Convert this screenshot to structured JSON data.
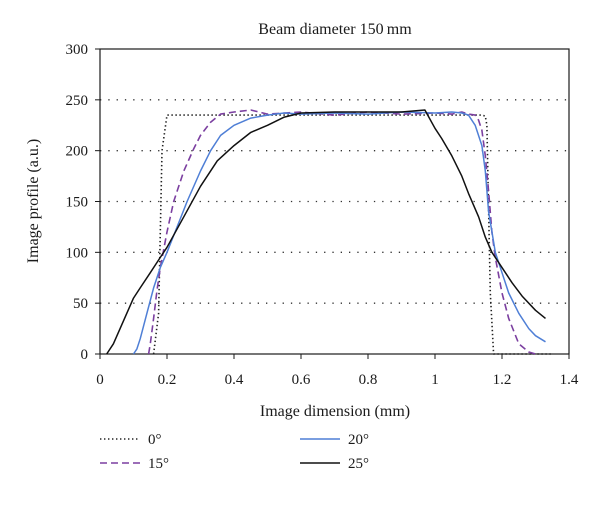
{
  "chart_data": {
    "type": "line",
    "title": "Beam diameter 150 mm",
    "xlabel": "Image dimension (mm)",
    "ylabel": "Image profile (a.u.)",
    "xlim": [
      0,
      1.4
    ],
    "ylim": [
      0,
      300
    ],
    "xticks": [
      0,
      0.2,
      0.4,
      0.6,
      0.8,
      1,
      1.2,
      1.4
    ],
    "xtick_labels": [
      "0",
      "0.2",
      "0.4",
      "0.6",
      "0.8",
      "1",
      "1.2",
      "1.4"
    ],
    "yticks": [
      0,
      50,
      100,
      150,
      200,
      250,
      300
    ],
    "ytick_labels": [
      "0",
      "50",
      "100",
      "150",
      "200",
      "250",
      "300"
    ],
    "grid": "horizontal dotted",
    "legend_position": "below",
    "series": [
      {
        "name": "0°",
        "color": "#222222",
        "style": "dotted",
        "x": [
          0.16,
          0.175,
          0.185,
          0.2,
          0.25,
          0.6,
          1.0,
          1.14,
          1.15,
          1.155,
          1.165,
          1.175,
          1.35
        ],
        "y": [
          0,
          40,
          200,
          235,
          235,
          235,
          235,
          235,
          234,
          225,
          60,
          0,
          0
        ]
      },
      {
        "name": "15°",
        "color": "#7b3fa0",
        "style": "dashed",
        "x": [
          0.145,
          0.15,
          0.16,
          0.17,
          0.18,
          0.2,
          0.22,
          0.25,
          0.28,
          0.3,
          0.33,
          0.36,
          0.4,
          0.45,
          0.5,
          0.6,
          0.7,
          0.8,
          0.9,
          1.0,
          1.05,
          1.08,
          1.1,
          1.12,
          1.13,
          1.14,
          1.15,
          1.16,
          1.17,
          1.18,
          1.2,
          1.22,
          1.25,
          1.28,
          1.3
        ],
        "y": [
          0,
          10,
          35,
          62,
          85,
          120,
          150,
          180,
          202,
          215,
          228,
          236,
          238,
          240,
          236,
          238,
          235,
          238,
          236,
          237,
          236,
          238,
          236,
          235,
          230,
          220,
          195,
          160,
          120,
          95,
          60,
          35,
          10,
          2,
          0
        ]
      },
      {
        "name": "20°",
        "color": "#4f7fd6",
        "style": "solid",
        "x": [
          0.1,
          0.11,
          0.12,
          0.14,
          0.16,
          0.18,
          0.2,
          0.23,
          0.26,
          0.3,
          0.33,
          0.36,
          0.4,
          0.45,
          0.5,
          0.55,
          0.6,
          0.7,
          0.8,
          0.9,
          1.0,
          1.05,
          1.08,
          1.1,
          1.12,
          1.14,
          1.15,
          1.16,
          1.18,
          1.2,
          1.22,
          1.25,
          1.28,
          1.3,
          1.33
        ],
        "y": [
          0,
          5,
          15,
          40,
          65,
          85,
          100,
          125,
          150,
          180,
          200,
          215,
          225,
          232,
          235,
          237,
          236,
          237,
          236,
          238,
          237,
          238,
          237,
          235,
          225,
          205,
          180,
          140,
          100,
          80,
          60,
          40,
          25,
          18,
          12
        ]
      },
      {
        "name": "25°",
        "color": "#111111",
        "style": "solid",
        "x": [
          0.02,
          0.04,
          0.06,
          0.08,
          0.1,
          0.12,
          0.15,
          0.18,
          0.2,
          0.25,
          0.3,
          0.35,
          0.4,
          0.45,
          0.5,
          0.55,
          0.6,
          0.7,
          0.8,
          0.9,
          0.97,
          1.0,
          1.02,
          1.05,
          1.08,
          1.1,
          1.13,
          1.15,
          1.17,
          1.2,
          1.23,
          1.26,
          1.3,
          1.33
        ],
        "y": [
          0,
          10,
          25,
          40,
          55,
          65,
          80,
          95,
          105,
          135,
          165,
          190,
          205,
          218,
          225,
          233,
          237,
          238,
          238,
          238,
          240,
          222,
          212,
          195,
          175,
          158,
          135,
          115,
          100,
          85,
          70,
          57,
          43,
          35
        ]
      }
    ]
  }
}
